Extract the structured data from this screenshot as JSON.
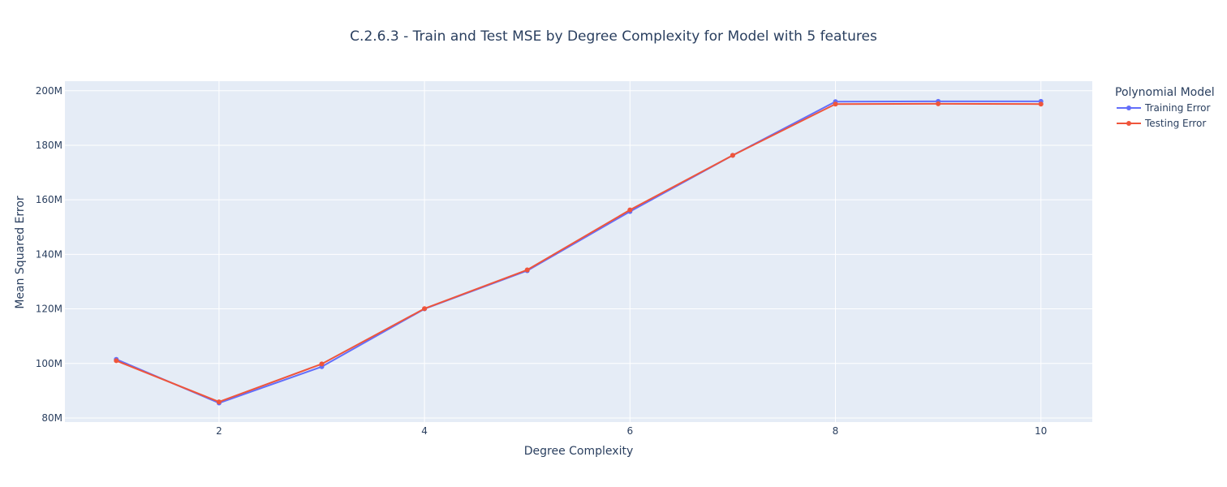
{
  "chart_data": {
    "type": "line",
    "title": "C.2.6.3 - Train and Test MSE by Degree Complexity for Model with 5 features",
    "xlabel": "Degree Complexity",
    "ylabel": "Mean Squared Error",
    "xlim": [
      0.5,
      10.5
    ],
    "ylim": [
      78500000,
      203500000
    ],
    "x_ticks": [
      2,
      4,
      6,
      8,
      10
    ],
    "x_tick_labels": [
      "2",
      "4",
      "6",
      "8",
      "10"
    ],
    "y_ticks": [
      80000000,
      100000000,
      120000000,
      140000000,
      160000000,
      180000000,
      200000000
    ],
    "y_tick_labels": [
      "80M",
      "100M",
      "120M",
      "140M",
      "160M",
      "180M",
      "200M"
    ],
    "grid": true,
    "legend_title": "Polynomial Model",
    "legend_position": "right",
    "x": [
      1,
      2,
      3,
      4,
      5,
      6,
      7,
      8,
      9,
      10
    ],
    "series": [
      {
        "name": "Training Error",
        "color": "#636efa",
        "values": [
          101500000,
          85500000,
          98800000,
          120000000,
          134000000,
          155700000,
          176300000,
          196000000,
          196100000,
          196100000
        ]
      },
      {
        "name": "Testing Error",
        "color": "#ef553b",
        "values": [
          101000000,
          85900000,
          99800000,
          120100000,
          134300000,
          156300000,
          176300000,
          195100000,
          195200000,
          195100000
        ]
      }
    ]
  }
}
